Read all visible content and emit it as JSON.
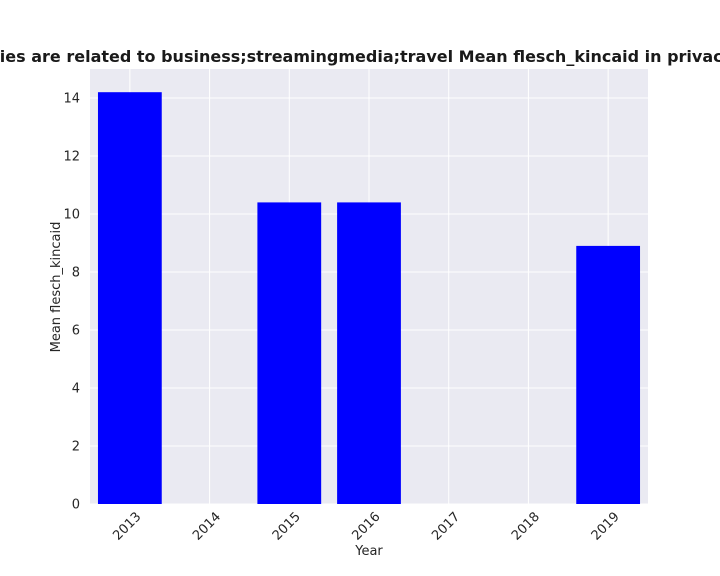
{
  "chart_data": {
    "type": "bar",
    "title": "ategories are related to business;streamingmedia;travel Mean flesch_kincaid in privacy policie",
    "xlabel": "Year",
    "ylabel": "Mean flesch_kincaid",
    "categories": [
      "2013",
      "2014",
      "2015",
      "2016",
      "2017",
      "2018",
      "2019"
    ],
    "values": [
      14.2,
      null,
      10.4,
      10.4,
      null,
      null,
      8.9
    ],
    "ylim": [
      0,
      15
    ],
    "yticks": [
      0,
      2,
      4,
      6,
      8,
      10,
      12,
      14
    ],
    "grid": true,
    "legend": "none",
    "colors": {
      "bar": "#0000ff",
      "plot_background": "#eaeaf2",
      "grid": "#ffffff"
    }
  }
}
